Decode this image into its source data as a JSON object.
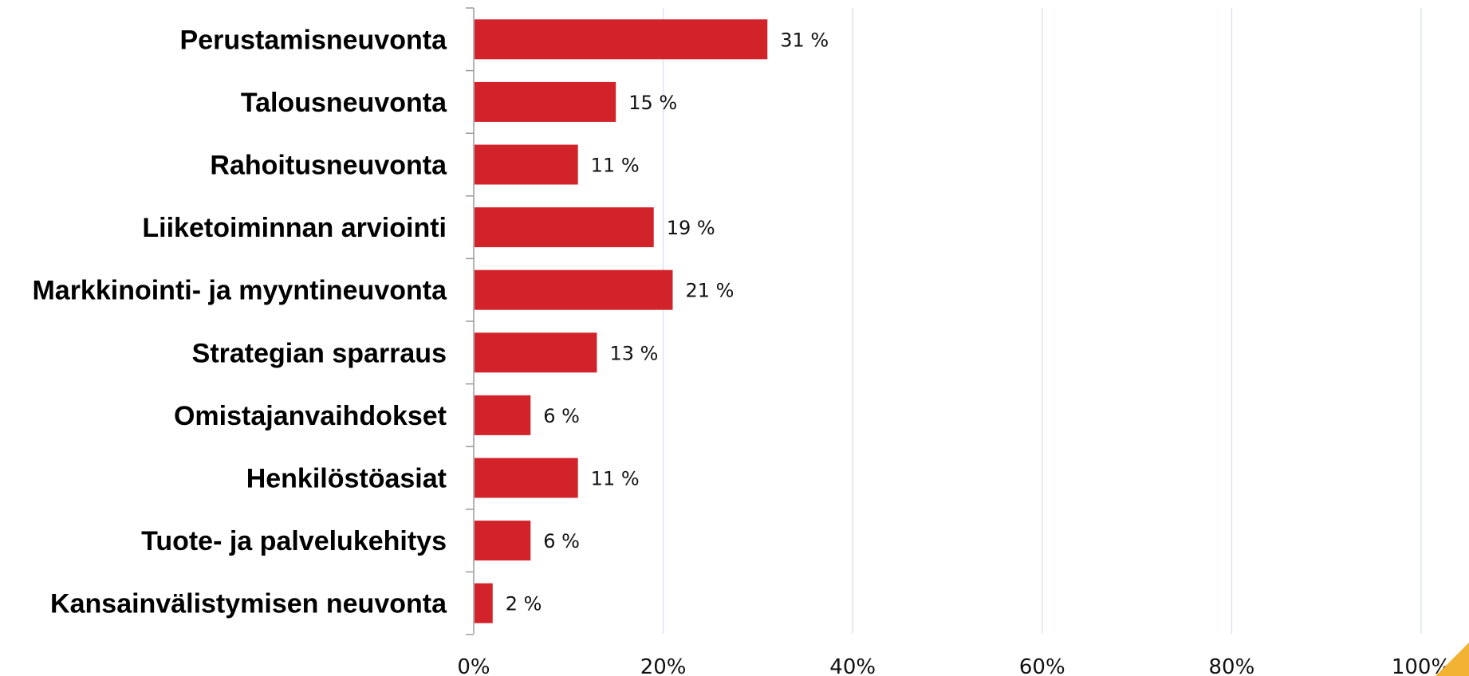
{
  "chart_data": {
    "type": "bar",
    "orientation": "horizontal",
    "categories": [
      "Perustamisneuvonta",
      "Talousneuvonta",
      "Rahoitusneuvonta",
      "Liiketoiminnan arviointi",
      "Markkinointi- ja myyntineuvonta",
      "Strategian sparraus",
      "Omistajanvaihdokset",
      "Henkilöstöasiat",
      "Tuote- ja palvelukehitys",
      "Kansainvälistymisen neuvonta"
    ],
    "values": [
      31,
      15,
      11,
      19,
      21,
      13,
      6,
      11,
      6,
      2
    ],
    "data_labels": [
      "31 %",
      "15 %",
      "11 %",
      "19 %",
      "21 %",
      "13 %",
      "6 %",
      "11 %",
      "6 %",
      "2 %"
    ],
    "xlim": [
      0,
      100
    ],
    "xticks": [
      0,
      20,
      40,
      60,
      80,
      100
    ],
    "xtick_labels": [
      "0%",
      "20%",
      "40%",
      "60%",
      "80%",
      "100%"
    ],
    "grid": "vertical",
    "legend": "none",
    "bar_color": "#d2232a",
    "gridline_color": "#dde3ee",
    "axis_color": "#9a9a9a"
  }
}
